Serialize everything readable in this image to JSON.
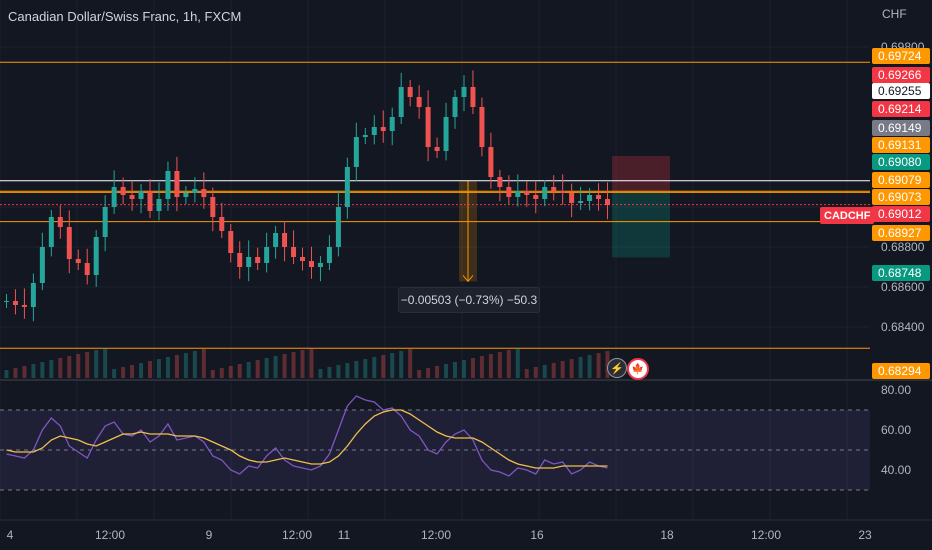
{
  "header": {
    "title": "Canadian Dollar/Swiss Franc, 1h, FXCM",
    "currency_unit": "CHF"
  },
  "colors": {
    "background": "#131722",
    "up": "#26a69a",
    "down": "#ef5350",
    "orange_line": "#ff9800",
    "white_line": "#ffffff",
    "rsi_line": "#7e57c2",
    "rsi_ma": "#f0c04b",
    "grid": "#1e222d"
  },
  "price_axis": {
    "ticks": [
      "0.69800",
      "0.68800",
      "0.68600",
      "0.68400"
    ],
    "labels": [
      {
        "text": "0.69724",
        "bg": "#ff9800",
        "fg": "#ffffff"
      },
      {
        "text": "0.69266",
        "bg": "#f23645",
        "fg": "#ffffff"
      },
      {
        "text": "0.69255",
        "bg": "#ffffff",
        "fg": "#131722"
      },
      {
        "text": "0.69214",
        "bg": "#f23645",
        "fg": "#ffffff"
      },
      {
        "text": "0.69149",
        "bg": "#787b86",
        "fg": "#ffffff"
      },
      {
        "text": "0.69131",
        "bg": "#ff9800",
        "fg": "#ffffff"
      },
      {
        "text": "0.69080",
        "bg": "#089981",
        "fg": "#ffffff"
      },
      {
        "text": "0.69079",
        "bg": "#ff9800",
        "fg": "#ffffff"
      },
      {
        "text": "0.69073",
        "bg": "#ff9800",
        "fg": "#ffffff"
      },
      {
        "text": "0.69012",
        "bg": "#f23645",
        "fg": "#ffffff"
      },
      {
        "text": "0.68927",
        "bg": "#ff9800",
        "fg": "#ffffff"
      },
      {
        "text": "0.68748",
        "bg": "#089981",
        "fg": "#ffffff"
      },
      {
        "text": "0.68294",
        "bg": "#ff9800",
        "fg": "#ffffff"
      }
    ],
    "symbol_tag": "CADCHF"
  },
  "rsi_axis": {
    "ticks": [
      "80.00",
      "60.00",
      "40.00"
    ]
  },
  "time_axis": {
    "ticks": [
      "4",
      "12:00",
      "9",
      "12:00",
      "11",
      "12:00",
      "16",
      "18",
      "12:00",
      "23"
    ]
  },
  "measure_label": "−0.00503 (−0.73%) −50.3",
  "icons": {
    "flash": "lightning-icon",
    "flag": "canada-flag-icon"
  },
  "chart_data": {
    "type": "candlestick",
    "title": "Canadian Dollar/Swiss Franc, 1h, FXCM",
    "symbol": "CADCHF",
    "last_price": 0.69012,
    "horizontal_levels": [
      {
        "price": 0.69724,
        "color": "#ff9800"
      },
      {
        "price": 0.69131,
        "color": "#ffffff"
      },
      {
        "price": 0.69079,
        "color": "#ff9800"
      },
      {
        "price": 0.69073,
        "color": "#ff9800"
      },
      {
        "price": 0.68927,
        "color": "#ff9800"
      },
      {
        "price": 0.68294,
        "color": "#ff9800"
      }
    ],
    "price_path": [
      0.6853,
      0.6851,
      0.685,
      0.6862,
      0.688,
      0.6895,
      0.689,
      0.6874,
      0.6872,
      0.6866,
      0.6885,
      0.69,
      0.691,
      0.6906,
      0.6904,
      0.6908,
      0.6898,
      0.6904,
      0.6918,
      0.6905,
      0.6907,
      0.6909,
      0.6905,
      0.6895,
      0.6888,
      0.6877,
      0.687,
      0.6875,
      0.6872,
      0.688,
      0.6887,
      0.688,
      0.6875,
      0.6873,
      0.687,
      0.6872,
      0.688,
      0.69,
      0.692,
      0.6935,
      0.6936,
      0.694,
      0.6938,
      0.6945,
      0.696,
      0.6955,
      0.695,
      0.693,
      0.6928,
      0.6945,
      0.6955,
      0.696,
      0.695,
      0.693,
      0.6915,
      0.691,
      0.6905,
      0.6908,
      0.6906,
      0.6904,
      0.691,
      0.6908,
      0.6907,
      0.6902,
      0.6903,
      0.6906,
      0.6904,
      0.6901
    ],
    "rsi": {
      "ylim": [
        20,
        80
      ],
      "bands": [
        70,
        50,
        30
      ],
      "values": [
        48,
        47,
        46,
        50,
        60,
        66,
        62,
        52,
        49,
        46,
        55,
        62,
        64,
        58,
        57,
        60,
        54,
        57,
        63,
        55,
        56,
        57,
        54,
        47,
        45,
        40,
        38,
        42,
        41,
        47,
        51,
        45,
        42,
        41,
        40,
        42,
        48,
        60,
        72,
        77,
        75,
        74,
        70,
        71,
        67,
        60,
        57,
        50,
        48,
        54,
        58,
        60,
        55,
        45,
        40,
        39,
        37,
        41,
        40,
        38,
        45,
        43,
        44,
        38,
        40,
        44,
        42,
        41
      ],
      "ma": [
        50,
        49,
        49,
        49,
        51,
        55,
        57,
        56,
        55,
        53,
        52,
        54,
        56,
        58,
        58,
        59,
        58,
        58,
        58,
        57,
        57,
        57,
        56,
        54,
        52,
        50,
        47,
        45,
        44,
        44,
        45,
        46,
        45,
        44,
        43,
        43,
        44,
        47,
        52,
        58,
        63,
        67,
        69,
        70,
        70,
        68,
        65,
        62,
        59,
        57,
        56,
        56,
        56,
        54,
        51,
        48,
        45,
        43,
        42,
        41,
        41,
        41,
        42,
        42,
        42,
        42,
        42,
        42
      ]
    },
    "measure": {
      "change": -0.00503,
      "percent": -0.73,
      "pips": -50.3
    }
  }
}
